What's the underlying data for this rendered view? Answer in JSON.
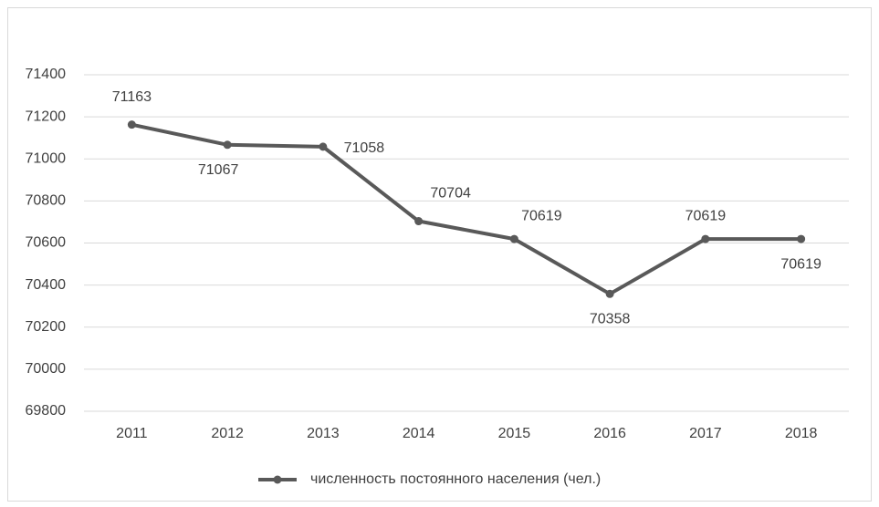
{
  "chart_data": {
    "type": "line",
    "categories": [
      "2011",
      "2012",
      "2013",
      "2014",
      "2015",
      "2016",
      "2017",
      "2018"
    ],
    "series": [
      {
        "name": "численность постоянного населения (чел.)",
        "color": "#595959",
        "values": [
          71163,
          71067,
          71058,
          70704,
          70619,
          70358,
          70619,
          70619
        ]
      }
    ],
    "ylim": [
      69800,
      71400
    ],
    "yticks": [
      69800,
      70000,
      70200,
      70400,
      70600,
      70800,
      71000,
      71200,
      71400
    ],
    "grid": true,
    "legend": "bottom"
  }
}
